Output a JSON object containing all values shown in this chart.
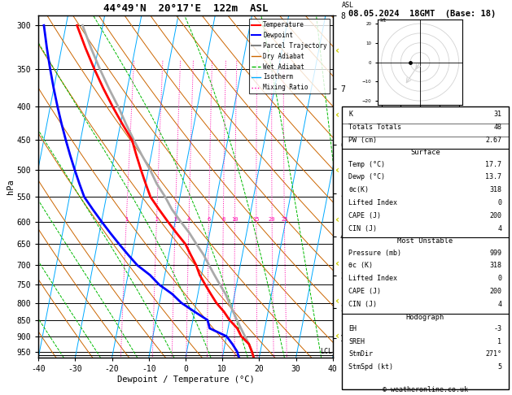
{
  "title_left": "44°49'N  20°17'E  122m  ASL",
  "title_right": "08.05.2024  18GMT  (Base: 18)",
  "xlabel": "Dewpoint / Temperature (°C)",
  "ylabel_left": "hPa",
  "pressure_levels": [
    300,
    350,
    400,
    450,
    500,
    550,
    600,
    650,
    700,
    750,
    800,
    850,
    900,
    950
  ],
  "pressure_min": 290,
  "pressure_max": 970,
  "temp_min": -40,
  "temp_max": 40,
  "skew_factor": 18.0,
  "isotherm_color": "#00aaff",
  "dry_adiabat_color": "#cc6600",
  "wet_adiabat_color": "#00bb00",
  "mixing_ratio_color": "#ff00aa",
  "temperature_profile_p": [
    970,
    950,
    925,
    900,
    875,
    850,
    825,
    800,
    775,
    750,
    725,
    700,
    675,
    650,
    625,
    600,
    575,
    550,
    525,
    500,
    475,
    450,
    425,
    400,
    375,
    350,
    325,
    300
  ],
  "temperature_profile_t": [
    18.5,
    17.7,
    16.5,
    14.0,
    12.5,
    10.0,
    8.0,
    5.5,
    3.5,
    1.5,
    -0.5,
    -2.0,
    -4.0,
    -6.0,
    -9.0,
    -12.0,
    -15.0,
    -18.0,
    -20.0,
    -22.0,
    -24.0,
    -26.0,
    -29.5,
    -33.0,
    -36.5,
    -40.0,
    -43.5,
    -47.0
  ],
  "dewpoint_profile_p": [
    970,
    950,
    925,
    900,
    875,
    850,
    825,
    800,
    775,
    750,
    725,
    700,
    675,
    650,
    625,
    600,
    575,
    550,
    525,
    500,
    475,
    450,
    425,
    400,
    375,
    350,
    325,
    300
  ],
  "dewpoint_profile_t": [
    14.5,
    13.7,
    12.0,
    10.0,
    5.0,
    4.0,
    0.0,
    -4.0,
    -7.0,
    -11.0,
    -14.0,
    -18.0,
    -21.0,
    -24.0,
    -27.0,
    -30.0,
    -33.0,
    -36.0,
    -38.0,
    -40.0,
    -42.0,
    -44.0,
    -46.0,
    -48.0,
    -50.0,
    -52.0,
    -54.0,
    -56.0
  ],
  "parcel_profile_p": [
    970,
    950,
    925,
    900,
    875,
    850,
    825,
    800,
    775,
    750,
    725,
    700,
    675,
    650,
    625,
    600,
    575,
    550,
    525,
    500,
    475,
    450,
    425,
    400,
    375,
    350,
    325,
    300
  ],
  "parcel_profile_t": [
    18.5,
    17.7,
    16.5,
    15.0,
    13.5,
    12.0,
    10.5,
    9.0,
    7.5,
    5.5,
    3.5,
    1.5,
    -0.5,
    -3.0,
    -5.5,
    -8.5,
    -11.5,
    -14.0,
    -17.0,
    -19.5,
    -22.5,
    -25.5,
    -28.5,
    -31.5,
    -35.0,
    -38.5,
    -42.0,
    -45.5
  ],
  "temp_color": "#ff0000",
  "dewpoint_color": "#0000ff",
  "parcel_color": "#aaaaaa",
  "lcl_pressure": 962,
  "km_ticks": [
    1,
    2,
    3,
    4,
    5,
    6,
    7,
    8
  ],
  "km_pressures": [
    898,
    795,
    697,
    596,
    501,
    412,
    328,
    245
  ],
  "mixing_ratios": [
    1,
    2,
    3,
    4,
    6,
    8,
    10,
    15,
    20,
    25
  ],
  "footer": "© weatheronline.co.uk",
  "hodo_circles": [
    5,
    10,
    15,
    20
  ],
  "hodo_storm_u": 0.09,
  "hodo_storm_v": 0.0,
  "table_rows_top": [
    [
      "K",
      "31"
    ],
    [
      "Totals Totals",
      "48"
    ],
    [
      "PW (cm)",
      "2.67"
    ]
  ],
  "surface_rows": [
    [
      "Temp (°C)",
      "17.7"
    ],
    [
      "Dewp (°C)",
      "13.7"
    ],
    [
      "θc(K)",
      "318"
    ],
    [
      "Lifted Index",
      "0"
    ],
    [
      "CAPE (J)",
      "200"
    ],
    [
      "CIN (J)",
      "4"
    ]
  ],
  "unstable_rows": [
    [
      "Pressure (mb)",
      "999"
    ],
    [
      "θc (K)",
      "318"
    ],
    [
      "Lifted Index",
      "0"
    ],
    [
      "CAPE (J)",
      "200"
    ],
    [
      "CIN (J)",
      "4"
    ]
  ],
  "hodo_rows": [
    [
      "EH",
      "-3"
    ],
    [
      "SREH",
      "1"
    ],
    [
      "StmDir",
      "271°"
    ],
    [
      "StmSpd (kt)",
      "5"
    ]
  ]
}
